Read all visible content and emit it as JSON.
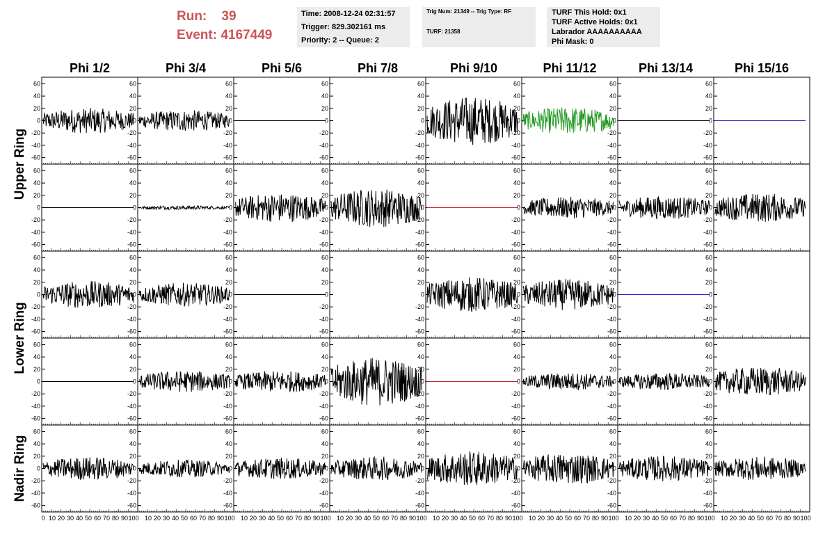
{
  "header": {
    "run_label": "Run:",
    "run_value": "39",
    "event_label": "Event:",
    "event_value": "4167449"
  },
  "info_box_1": [
    "Time: 2008-12-24 02:31:57",
    "Trigger: 829.302161 ms",
    "Priority: 2 -- Queue: 2"
  ],
  "info_box_2": [
    "Trig Num: 21349 -- Trig Type: RF",
    "TURF: 21358"
  ],
  "info_box_3": [
    "TURF This Hold: 0x1",
    "TURF Active Holds: 0x1",
    "Labrador AAAAAAAAAA",
    "Phi Mask: 0"
  ],
  "chart_data": {
    "type": "line",
    "column_titles": [
      "Phi 1/2",
      "Phi 3/4",
      "Phi 5/6",
      "Phi 7/8",
      "Phi 9/10",
      "Phi 11/12",
      "Phi 13/14",
      "Phi 15/16"
    ],
    "ring_titles": [
      "Upper Ring",
      "Lower Ring",
      "Nadir Ring"
    ],
    "ylim": [
      -65,
      65
    ],
    "xlim": [
      0,
      100
    ],
    "y_ticks": [
      -60,
      -40,
      -20,
      0,
      20,
      40,
      60
    ],
    "x_ticks": [
      0,
      10,
      20,
      30,
      40,
      50,
      60,
      70,
      80,
      90,
      100
    ],
    "x_tick_labels": [
      "0",
      "10",
      "20",
      "30",
      "40",
      "50",
      "60",
      "70",
      "80",
      "90",
      "100"
    ],
    "colors": {
      "default": "#000000",
      "green": "#229922",
      "blue": "#2222cc",
      "red": "#cc2222"
    },
    "panels": [
      [
        {
          "amp": 13,
          "color": "default"
        },
        {
          "amp": 11,
          "color": "default"
        },
        {
          "amp": 0,
          "color": "default"
        },
        {
          "amp": null
        },
        {
          "amp": 25,
          "color": "default"
        },
        {
          "amp": 14,
          "color": "green"
        },
        {
          "amp": 0,
          "color": "default"
        },
        {
          "amp": 0,
          "color": "blue"
        }
      ],
      [
        {
          "amp": 0,
          "color": "default"
        },
        {
          "amp": 2,
          "color": "default"
        },
        {
          "amp": 15,
          "color": "default"
        },
        {
          "amp": 20,
          "color": "default"
        },
        {
          "amp": 0,
          "color": "red"
        },
        {
          "amp": 11,
          "color": "default"
        },
        {
          "amp": 12,
          "color": "default"
        },
        {
          "amp": 15,
          "color": "default"
        }
      ],
      [
        {
          "amp": 14,
          "color": "default"
        },
        {
          "amp": 12,
          "color": "default"
        },
        {
          "amp": 0,
          "color": "default"
        },
        {
          "amp": null
        },
        {
          "amp": 18,
          "color": "default"
        },
        {
          "amp": 16,
          "color": "default"
        },
        {
          "amp": 0,
          "color": "blue"
        },
        {
          "amp": null
        }
      ],
      [
        {
          "amp": 0,
          "color": "default"
        },
        {
          "amp": 11,
          "color": "default"
        },
        {
          "amp": 11,
          "color": "default"
        },
        {
          "amp": 25,
          "color": "default"
        },
        {
          "amp": 0,
          "color": "red"
        },
        {
          "amp": 9,
          "color": "default"
        },
        {
          "amp": 9,
          "color": "default"
        },
        {
          "amp": 15,
          "color": "default"
        }
      ],
      [
        {
          "amp": 12,
          "color": "default"
        },
        {
          "amp": 9,
          "color": "default"
        },
        {
          "amp": 11,
          "color": "default"
        },
        {
          "amp": 12,
          "color": "default"
        },
        {
          "amp": 18,
          "color": "default"
        },
        {
          "amp": 16,
          "color": "default"
        },
        {
          "amp": 13,
          "color": "default"
        },
        {
          "amp": 12,
          "color": "default"
        }
      ]
    ]
  }
}
